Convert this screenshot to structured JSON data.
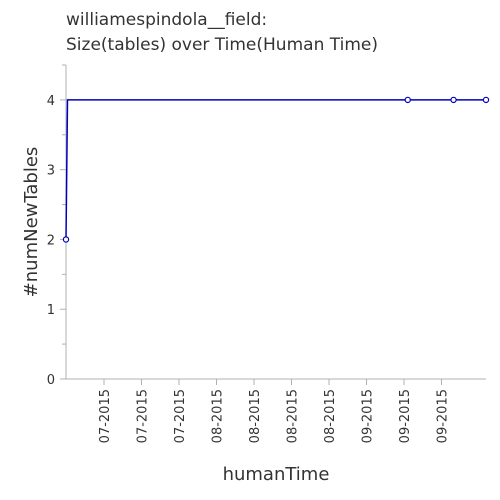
{
  "chart_data": {
    "type": "line",
    "title_lines": [
      "williamespindola__field:",
      "Size(tables) over Time(Human Time)"
    ],
    "xlabel": "humanTime",
    "ylabel": "#numNewTables",
    "y_ticks": [
      0,
      1,
      2,
      3,
      4
    ],
    "ylim": [
      0,
      4.5
    ],
    "x_tick_labels": [
      "07-2015",
      "07-2015",
      "07-2015",
      "08-2015",
      "08-2015",
      "08-2015",
      "08-2015",
      "09-2015",
      "09-2015",
      "09-2015"
    ],
    "x_range_days": [
      0,
      110
    ],
    "grid": false,
    "series": [
      {
        "color": "#0000bb",
        "points": [
          {
            "x": 0,
            "y": 2
          },
          {
            "x": 0.4,
            "y": 4
          },
          {
            "x": 89.5,
            "y": 4
          },
          {
            "x": 101.5,
            "y": 4
          },
          {
            "x": 110,
            "y": 4
          }
        ],
        "marked_indices": [
          0,
          2,
          3,
          4
        ]
      }
    ],
    "axis_color": "#b0b0b0",
    "text_color": "#333333"
  }
}
